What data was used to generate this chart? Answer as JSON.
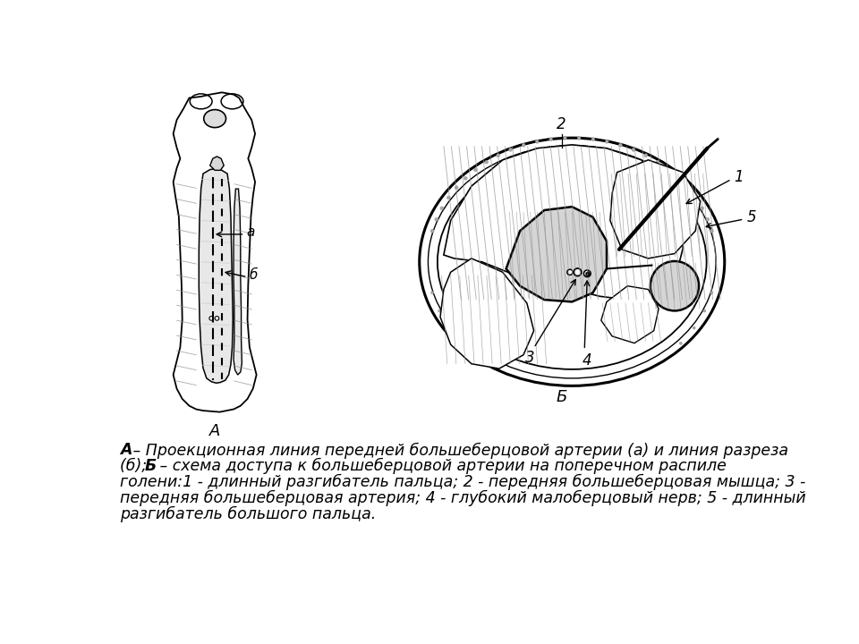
{
  "background_color": "#ffffff",
  "fig_width": 9.6,
  "fig_height": 7.2,
  "caption_line1": "А – Проекционная линия передней большеберцовой артерии (а) и линия разреза",
  "caption_line2": "(б); Б – схема доступа к большеберцовой артерии на поперечном распиле",
  "caption_line3": "голени:1 - длинный разгибатель пальца; 2 - передняя большеберцовая мышца; 3 -",
  "caption_line4": "передняя большеберцовая артерия; 4 - глубокий малоберцовый нерв; 5 - длинный",
  "caption_line5": "разгибатель большого пальца.",
  "label_A": "А",
  "label_B": "Б",
  "label_a": "а",
  "label_b": "б",
  "label_1": "1",
  "label_2": "2",
  "label_3": "3",
  "label_4": "4",
  "label_5": "5",
  "text_color": "#000000",
  "line_color": "#000000",
  "gray_color": "#888888",
  "dark_gray": "#444444",
  "light_gray": "#cccccc"
}
